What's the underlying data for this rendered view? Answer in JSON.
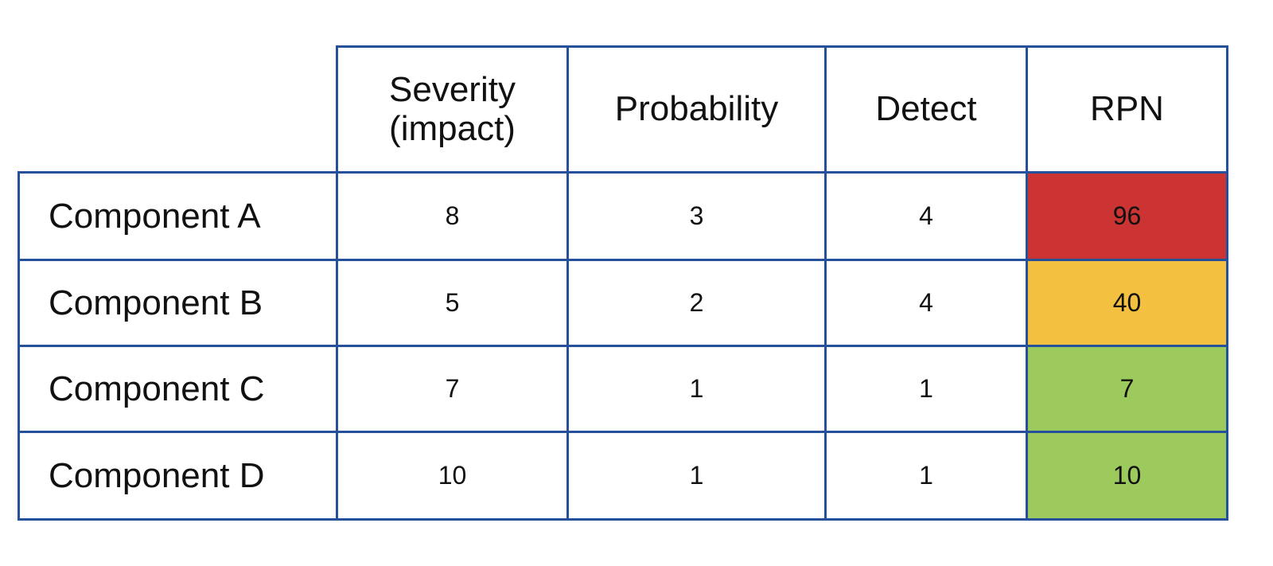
{
  "table": {
    "columns": [
      "Severity (impact)",
      "Probability",
      "Detect",
      "RPN"
    ],
    "rows": [
      {
        "label": "Component A",
        "values": [
          8,
          3,
          4,
          96
        ],
        "rpn_color": "#cc3333"
      },
      {
        "label": "Component B",
        "values": [
          5,
          2,
          4,
          40
        ],
        "rpn_color": "#f3c040"
      },
      {
        "label": "Component C",
        "values": [
          7,
          1,
          1,
          7
        ],
        "rpn_color": "#9dca5c"
      },
      {
        "label": "Component D",
        "values": [
          10,
          1,
          1,
          10
        ],
        "rpn_color": "#9dca5c"
      }
    ]
  }
}
